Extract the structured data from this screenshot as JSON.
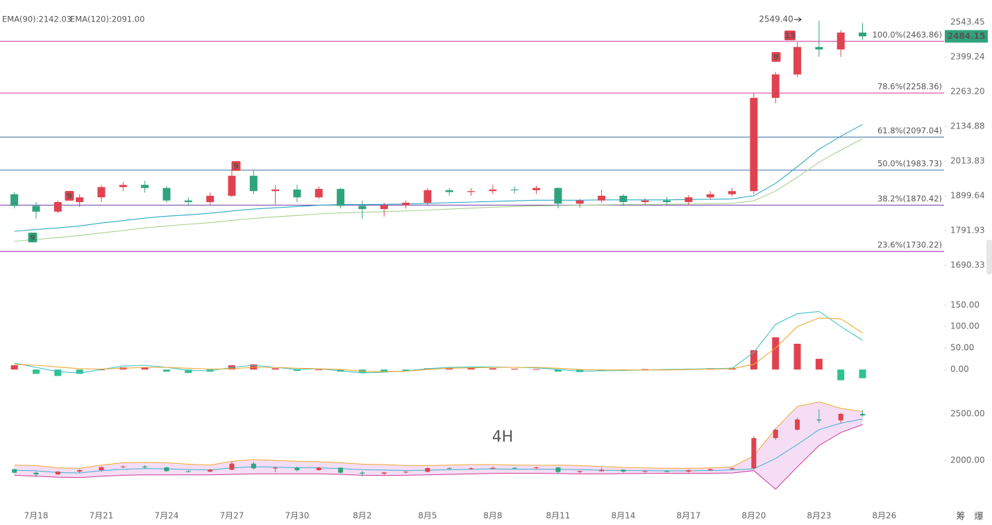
{
  "chart_data": [
    {
      "type": "candlestick",
      "categories": [
        null,
        "7月18",
        null,
        null,
        "7月21",
        null,
        null,
        "7月24",
        null,
        null,
        "7月27",
        null,
        null,
        "7月30",
        null,
        null,
        "8月2",
        null,
        null,
        "8月5",
        null,
        null,
        "8月8",
        null,
        null,
        "8月11",
        null,
        null,
        "8月14",
        null,
        null,
        "8月17",
        null,
        null,
        "8月20",
        null,
        null,
        "8月23",
        null,
        null,
        "8月26"
      ],
      "open": [
        1905,
        1868,
        1850,
        1880,
        1895,
        1928,
        1935,
        1925,
        1885,
        1880,
        1900,
        1965,
        1915,
        1920,
        1895,
        1922,
        1868,
        1858,
        1870,
        1878,
        1918,
        1912,
        1915,
        1920,
        1918,
        1925,
        1875,
        1885,
        1900,
        1880,
        1885,
        1880,
        1895,
        1905,
        1915,
        2240,
        2330,
        2440,
        2430,
        2500,
        null
      ],
      "high": [
        1912,
        1880,
        1885,
        1905,
        1935,
        1945,
        1948,
        1932,
        1895,
        1910,
        1990,
        1985,
        1935,
        1935,
        1930,
        1925,
        1885,
        1878,
        1885,
        1925,
        1925,
        1925,
        1935,
        1930,
        1932,
        1928,
        1890,
        1920,
        1905,
        1892,
        1895,
        1902,
        1915,
        1925,
        2260,
        2340,
        2460,
        2549.4,
        2510,
        2540,
        null
      ],
      "low": [
        1860,
        1828,
        1845,
        1865,
        1880,
        1915,
        1910,
        1878,
        1868,
        1872,
        1895,
        1905,
        1872,
        1880,
        1890,
        1860,
        1828,
        1835,
        1860,
        1870,
        1900,
        1900,
        1905,
        1908,
        1905,
        1860,
        1862,
        1878,
        1868,
        1870,
        1872,
        1870,
        1888,
        1898,
        1905,
        2220,
        2320,
        2400,
        2400,
        2470,
        null
      ],
      "close": [
        1868,
        1850,
        1880,
        1895,
        1928,
        1935,
        1925,
        1885,
        1880,
        1900,
        1965,
        1915,
        1920,
        1895,
        1922,
        1868,
        1858,
        1870,
        1878,
        1918,
        1912,
        1915,
        1920,
        1918,
        1925,
        1875,
        1885,
        1900,
        1880,
        1885,
        1880,
        1895,
        1905,
        1915,
        2240,
        2330,
        2440,
        2430,
        2500,
        2484.15,
        null
      ],
      "up_color": "#e0434f",
      "down_color": "#2fa37d",
      "series": [
        {
          "name": "EMA(90):2142.03",
          "color": "#2aa8c4",
          "values": [
            1790,
            1795,
            1800,
            1806,
            1815,
            1822,
            1830,
            1836,
            1840,
            1845,
            1852,
            1858,
            1862,
            1866,
            1870,
            1872,
            1872,
            1873,
            1874,
            1876,
            1878,
            1880,
            1882,
            1884,
            1886,
            1886,
            1886,
            1887,
            1887,
            1887,
            1887,
            1888,
            1889,
            1890,
            1900,
            1940,
            1995,
            2055,
            2100,
            2142.03,
            null
          ]
        },
        {
          "name": "EMA(120):2091.00",
          "color": "#a8d08d",
          "values": [
            1760,
            1765,
            1771,
            1777,
            1785,
            1792,
            1800,
            1806,
            1811,
            1816,
            1823,
            1829,
            1834,
            1838,
            1843,
            1846,
            1848,
            1850,
            1852,
            1855,
            1858,
            1861,
            1864,
            1866,
            1868,
            1869,
            1870,
            1871,
            1872,
            1872,
            1873,
            1874,
            1875,
            1876,
            1884,
            1915,
            1960,
            2010,
            2052,
            2091,
            null
          ]
        }
      ],
      "ylim": [
        1665,
        2610
      ],
      "log_scale": true,
      "grid": false,
      "yticks": [
        {
          "value": 2543.45,
          "label": "2543.45"
        },
        2399.24,
        {
          "value": 2263.2,
          "label": "2263.20"
        },
        2134.88,
        2013.83,
        1899.64,
        1791.93,
        1690.33
      ],
      "fib_levels": [
        {
          "value": 2463.86,
          "label": "100.0%(2463.86)",
          "color": "#c8399c"
        },
        {
          "value": 2258.36,
          "label": "78.6%(2258.36)",
          "color": "#d0308a"
        },
        {
          "value": 2097.04,
          "label": "61.8%(2097.04)",
          "color": "#3a6ea5"
        },
        {
          "value": 1983.73,
          "label": "50.0%(1983.73)",
          "color": "#3a6ea5"
        },
        {
          "value": 1870.42,
          "label": "38.2%(1870.42)",
          "color": "#6a3aa5"
        },
        {
          "value": 1730.22,
          "label": "23.6%(1730.22)",
          "color": "#8a1a9a"
        }
      ],
      "annotations": [
        {
          "value": 2549.4,
          "label": "2549.40"
        }
      ],
      "markers": [
        {
          "text": "9",
          "color": "#2fa37d"
        },
        {
          "text": "9",
          "color": "#e0434f"
        },
        {
          "text": "9",
          "color": "#e0434f"
        },
        {
          "text": "9",
          "color": "#e0434f"
        },
        {
          "text": "13",
          "color": "#e0434f"
        }
      ]
    },
    {
      "type": "macd",
      "values": [
        10,
        -10,
        -15,
        -10,
        0,
        5,
        5,
        -5,
        -8,
        -5,
        10,
        12,
        3,
        -3,
        0,
        -5,
        -8,
        -6,
        -3,
        3,
        4,
        4,
        3,
        2,
        1,
        -5,
        -6,
        -3,
        -1,
        1,
        1,
        2,
        3,
        4,
        45,
        75,
        60,
        25,
        -25,
        -20,
        null
      ],
      "up_color": "#e0434f",
      "down_color": "#2fc191",
      "series": [
        {
          "color": "#3cc3c8",
          "values": [
            15,
            5,
            -5,
            -8,
            0,
            8,
            10,
            5,
            -2,
            -3,
            5,
            10,
            5,
            0,
            2,
            -3,
            -8,
            -6,
            -3,
            2,
            5,
            6,
            6,
            5,
            4,
            0,
            -4,
            -3,
            -2,
            -1,
            0,
            1,
            2,
            3,
            40,
            105,
            130,
            135,
            100,
            68,
            null
          ]
        },
        {
          "color": "#f0a830",
          "values": [
            12,
            10,
            6,
            2,
            1,
            3,
            5,
            5,
            3,
            1,
            2,
            5,
            5,
            3,
            2,
            0,
            -4,
            -5,
            -4,
            0,
            3,
            4,
            5,
            5,
            5,
            3,
            0,
            -1,
            -1,
            -1,
            -1,
            0,
            1,
            2,
            12,
            50,
            100,
            120,
            118,
            85,
            null
          ]
        }
      ],
      "ylim": [
        -45,
        165
      ],
      "yticks": [
        {
          "value": 150,
          "label": "150.00"
        },
        {
          "value": 100,
          "label": "100.00"
        },
        {
          "value": 50,
          "label": "50.00"
        },
        {
          "value": 0,
          "label": "0.00"
        }
      ]
    },
    {
      "type": "bollinger",
      "band_color": "#f3d6f3",
      "series": [
        {
          "color": "#f0a830",
          "values": [
            1950,
            1945,
            1920,
            1915,
            1950,
            1975,
            1980,
            1975,
            1960,
            1950,
            1990,
            2010,
            2000,
            1990,
            1985,
            1975,
            1960,
            1955,
            1945,
            1945,
            1950,
            1955,
            1955,
            1950,
            1948,
            1950,
            1945,
            1935,
            1925,
            1920,
            1915,
            1915,
            1920,
            1930,
            2050,
            2340,
            2580,
            2630,
            2560,
            2525,
            null
          ]
        },
        {
          "color": "#3cb0d0",
          "values": [
            1895,
            1888,
            1870,
            1865,
            1890,
            1905,
            1912,
            1910,
            1902,
            1898,
            1920,
            1932,
            1928,
            1922,
            1920,
            1912,
            1900,
            1896,
            1892,
            1895,
            1900,
            1905,
            1908,
            1906,
            1905,
            1904,
            1900,
            1895,
            1892,
            1890,
            1888,
            1888,
            1891,
            1897,
            1910,
            2020,
            2170,
            2330,
            2400,
            2445,
            null
          ]
        },
        {
          "color": "#c8399c",
          "values": [
            1840,
            1830,
            1820,
            1815,
            1830,
            1840,
            1845,
            1845,
            1845,
            1845,
            1850,
            1855,
            1855,
            1855,
            1855,
            1850,
            1840,
            1838,
            1840,
            1845,
            1850,
            1855,
            1860,
            1862,
            1862,
            1858,
            1855,
            1855,
            1858,
            1860,
            1862,
            1862,
            1862,
            1865,
            1890,
            1690,
            1930,
            2160,
            2300,
            2385,
            null
          ]
        }
      ],
      "ylim": [
        1612,
        2694
      ],
      "yticks": [
        {
          "value": 2500,
          "label": "2500.00"
        },
        {
          "value": 2000,
          "label": "2000.00"
        }
      ],
      "annotations": [
        {
          "text": "4H"
        }
      ],
      "footer_icons": [
        "筹",
        "爆"
      ]
    }
  ]
}
